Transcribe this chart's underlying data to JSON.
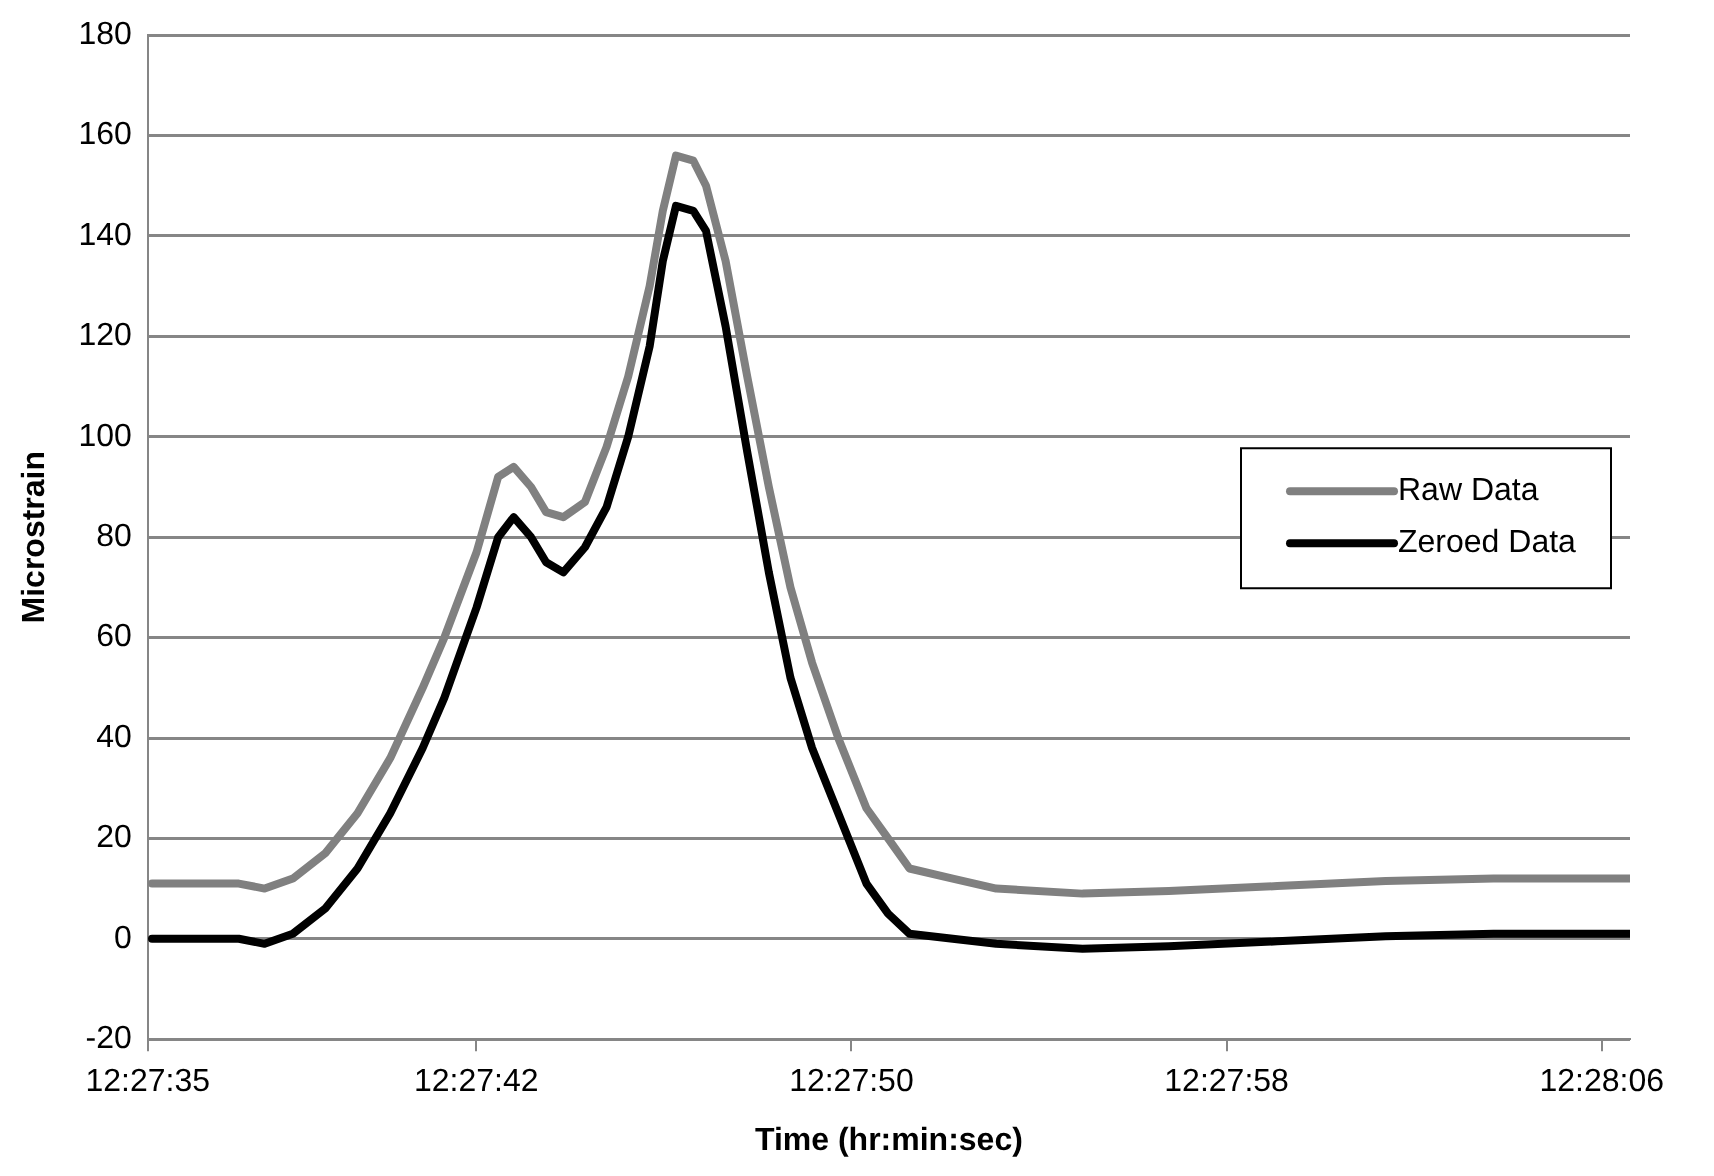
{
  "chart_data": {
    "type": "line",
    "xlabel": "Time (hr:min:sec)",
    "ylabel": "Microstrain",
    "x": [
      12.459747,
      12.460261,
      12.460414,
      12.460581,
      12.460772,
      12.460964,
      12.461158,
      12.46135,
      12.461478,
      12.461669,
      12.461797,
      12.461889,
      12.461992,
      12.462081,
      12.462183,
      12.462311,
      12.462439,
      12.462567,
      12.462694,
      12.462772,
      12.46285,
      12.462953,
      12.463028,
      12.463144,
      12.463272,
      12.4634,
      12.463528,
      12.463656,
      12.463811,
      12.463978,
      12.464106,
      12.464233,
      12.464489,
      12.464747,
      12.465258,
      12.465769,
      12.466411,
      12.467053,
      12.467692,
      12.468333,
      12.4685
    ],
    "series": [
      {
        "name": "Raw Data",
        "color": "#808080",
        "values": [
          11,
          11,
          10,
          12,
          17,
          25,
          36,
          50,
          60,
          77,
          92,
          94,
          90,
          85,
          84,
          87,
          98,
          112,
          130,
          145,
          156,
          155,
          150,
          135,
          112,
          90,
          70,
          55,
          40,
          26,
          20,
          14,
          12,
          10,
          9,
          9.5,
          10.5,
          11.5,
          12,
          12,
          12
        ]
      },
      {
        "name": "Zeroed Data",
        "color": "#000000",
        "values": [
          0,
          0,
          -1,
          1,
          6,
          14,
          25,
          38,
          48,
          66,
          80,
          84,
          80,
          75,
          73,
          78,
          86,
          100,
          118,
          135,
          146,
          145,
          141,
          122,
          97,
          73,
          52,
          38,
          25,
          11,
          5,
          1,
          0,
          -1,
          -2,
          -1.5,
          -0.5,
          0.5,
          1,
          1,
          1
        ]
      }
    ],
    "xlim": [
      12.459722,
      12.4685
    ],
    "xticks": [
      {
        "value": 12.459722,
        "label": "12:27:35"
      },
      {
        "value": 12.461667,
        "label": "12:27:42"
      },
      {
        "value": 12.463889,
        "label": "12:27:50"
      },
      {
        "value": 12.466111,
        "label": "12:27:58"
      },
      {
        "value": 12.468333,
        "label": "12:28:06"
      }
    ],
    "ylim": [
      -20,
      180
    ],
    "yticks": [
      -20,
      0,
      20,
      40,
      60,
      80,
      100,
      120,
      140,
      160,
      180
    ],
    "grid": "y",
    "legend": "right",
    "marker": "none",
    "line_style": "solid"
  }
}
